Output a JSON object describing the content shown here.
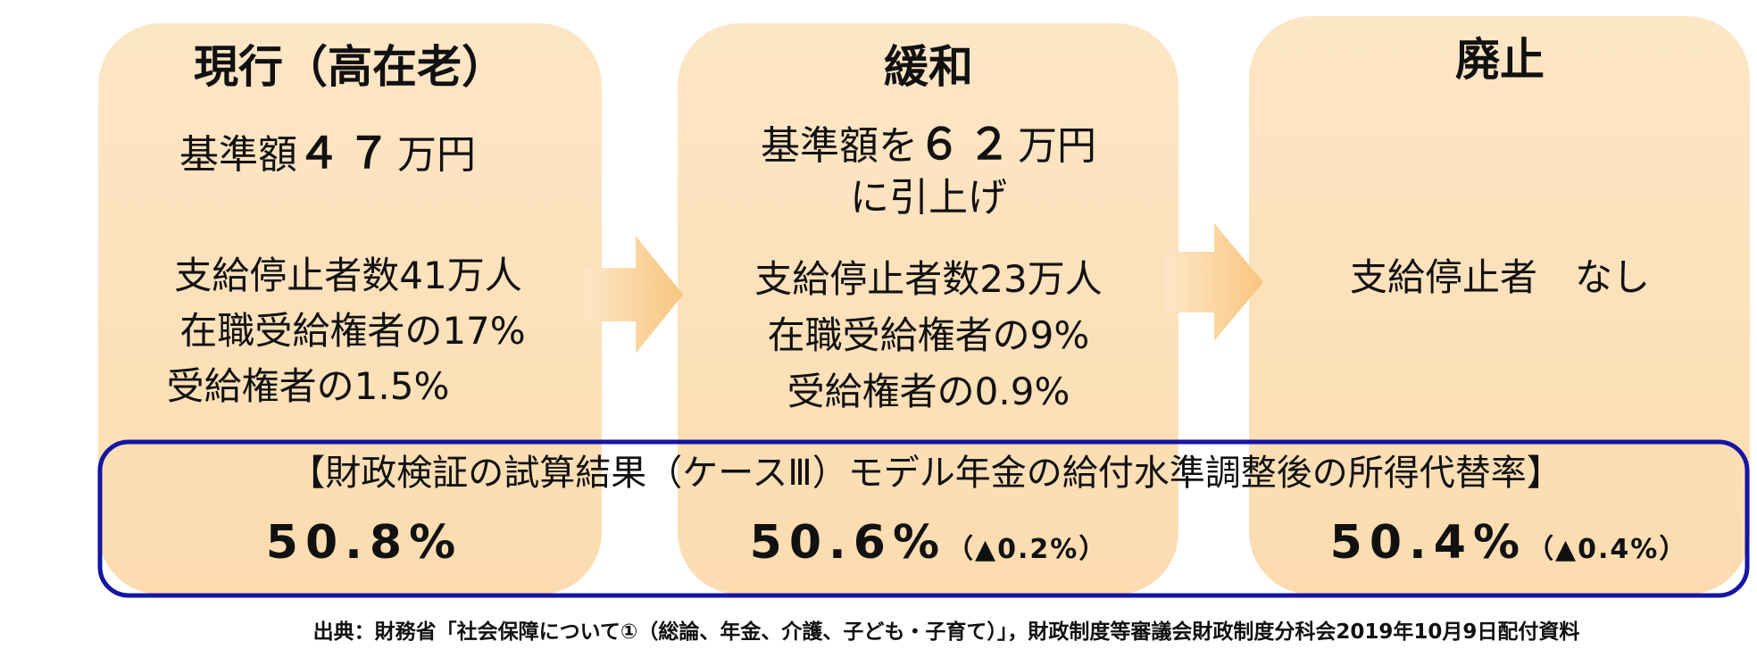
{
  "panels": [
    {
      "title": "現行（高在老）",
      "base": [
        {
          "prefix": "基準額",
          "amount": "４７",
          "suffix": "万円"
        }
      ],
      "stops": [
        "支給停止者数41万人",
        "在職受給権者の17%",
        "受給権者の1.5%"
      ]
    },
    {
      "title": "緩和",
      "base": [
        {
          "prefix": "基準額を",
          "amount": "６２",
          "suffix": "万円"
        },
        {
          "prefix": "に引上げ"
        }
      ],
      "stops": [
        "支給停止者数23万人",
        "在職受給権者の9%",
        "受給権者の0.9%"
      ]
    },
    {
      "title": "廃止",
      "stops": [
        "支給停止者　なし"
      ]
    }
  ],
  "result": {
    "heading": "【財政検証の試算結果（ケースⅢ）モデル年金の給付水準調整後の所得代替率】",
    "values": [
      {
        "rate": "50.8%"
      },
      {
        "rate": "50.6%",
        "diff": "（▲0.2%）"
      },
      {
        "rate": "50.4%",
        "diff": "（▲0.4%）"
      }
    ]
  },
  "source": "出典：財務省「社会保障について①（総論、年金、介護、子ども・子育て）」，財政制度等審議会財政制度分科会2019年10月9日配付資料"
}
